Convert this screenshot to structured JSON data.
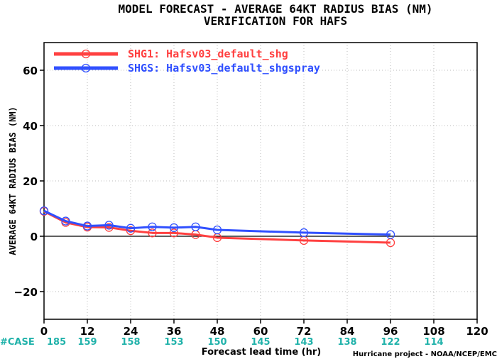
{
  "chart_data": {
    "type": "line",
    "title": "MODEL FORECAST - AVERAGE 64KT RADIUS BIAS (NM)",
    "subtitle": "VERIFICATION FOR HAFS",
    "xlabel": "Forecast lead time (hr)",
    "ylabel": "AVERAGE 64KT RADIUS BIAS (NM)",
    "credit": "Hurricane project - NOAA/NCEP/EMC",
    "xlim": [
      0,
      120
    ],
    "ylim": [
      -30,
      70
    ],
    "xticks": [
      0,
      12,
      24,
      36,
      48,
      60,
      72,
      84,
      96,
      108,
      120
    ],
    "yticks": [
      -20,
      0,
      20,
      40,
      60
    ],
    "grid": true,
    "legend_position": "top-left",
    "zero_line": 0,
    "series": [
      {
        "name": "SHG1: Hafsv03_default_shg",
        "color": "#ff4040",
        "x": [
          0,
          6,
          12,
          18,
          24,
          30,
          36,
          42,
          48,
          72,
          96
        ],
        "y": [
          9.0,
          5.0,
          3.3,
          3.2,
          2.0,
          1.2,
          1.2,
          0.6,
          -0.5,
          -1.5,
          -2.3
        ],
        "markers": [
          true,
          true,
          true,
          true,
          true,
          true,
          true,
          true,
          true,
          true,
          true
        ]
      },
      {
        "name": "SHGS: Hafsv03_default_shgspray",
        "color": "#3050ff",
        "x": [
          0,
          6,
          12,
          18,
          24,
          30,
          36,
          42,
          48,
          72,
          96
        ],
        "y": [
          9.2,
          5.5,
          3.7,
          4.0,
          2.9,
          3.4,
          3.1,
          3.4,
          2.3,
          1.3,
          0.6
        ],
        "markers": [
          true,
          true,
          true,
          true,
          true,
          true,
          true,
          true,
          true,
          true,
          true
        ]
      }
    ],
    "cases": {
      "label": "#CASE",
      "x": [
        0,
        12,
        24,
        36,
        48,
        60,
        72,
        84,
        96,
        108
      ],
      "counts": [
        "185",
        "159",
        "158",
        "153",
        "150",
        "145",
        "143",
        "138",
        "122",
        "114"
      ]
    }
  }
}
